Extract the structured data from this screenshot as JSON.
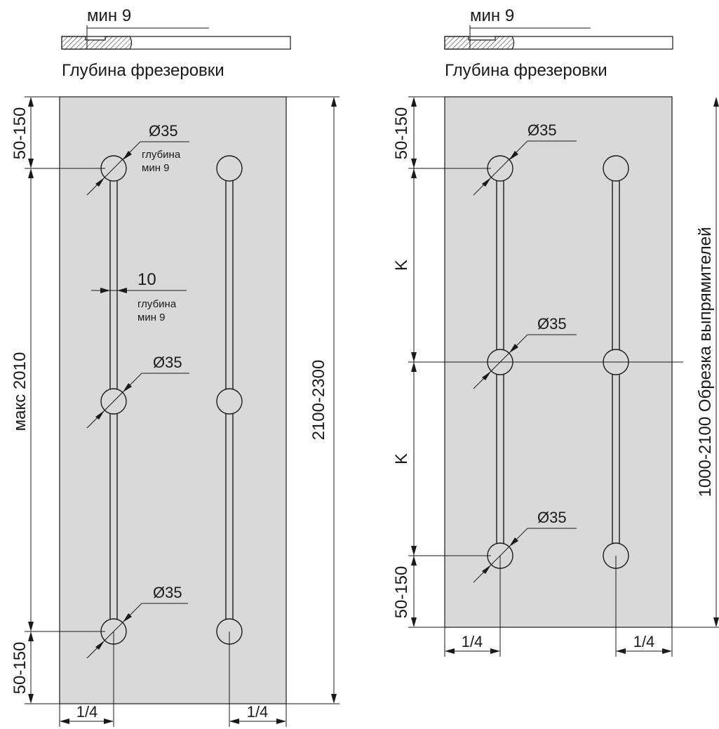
{
  "left": {
    "min_depth_label": "мин 9",
    "section_caption": "Глубина фрезеровки",
    "dims": {
      "top_offset": "50-150",
      "bottom_offset": "50-150",
      "max_length": "макс 2010",
      "total_height": "2100-2300",
      "left_quarter": "1/4",
      "right_quarter": "1/4"
    },
    "holes": [
      {
        "diameter": "Ø35",
        "note_line1": "глубина",
        "note_line2": "мин 9"
      },
      {
        "diameter": "Ø35"
      },
      {
        "diameter": "Ø35"
      }
    ],
    "groove": {
      "width": "10",
      "note_line1": "глубина",
      "note_line2": "мин 9"
    }
  },
  "right": {
    "min_depth_label": "мин 9",
    "section_caption": "Глубина фрезеровки",
    "dims": {
      "top_offset": "50-150",
      "bottom_offset": "50-150",
      "k_upper": "K",
      "k_lower": "K",
      "height_note": "1000-2100 Обрезка выпрямителей",
      "left_quarter": "1/4",
      "right_quarter": "1/4"
    },
    "holes": [
      {
        "diameter": "Ø35"
      },
      {
        "diameter": "Ø35"
      },
      {
        "diameter": "Ø35"
      }
    ]
  }
}
